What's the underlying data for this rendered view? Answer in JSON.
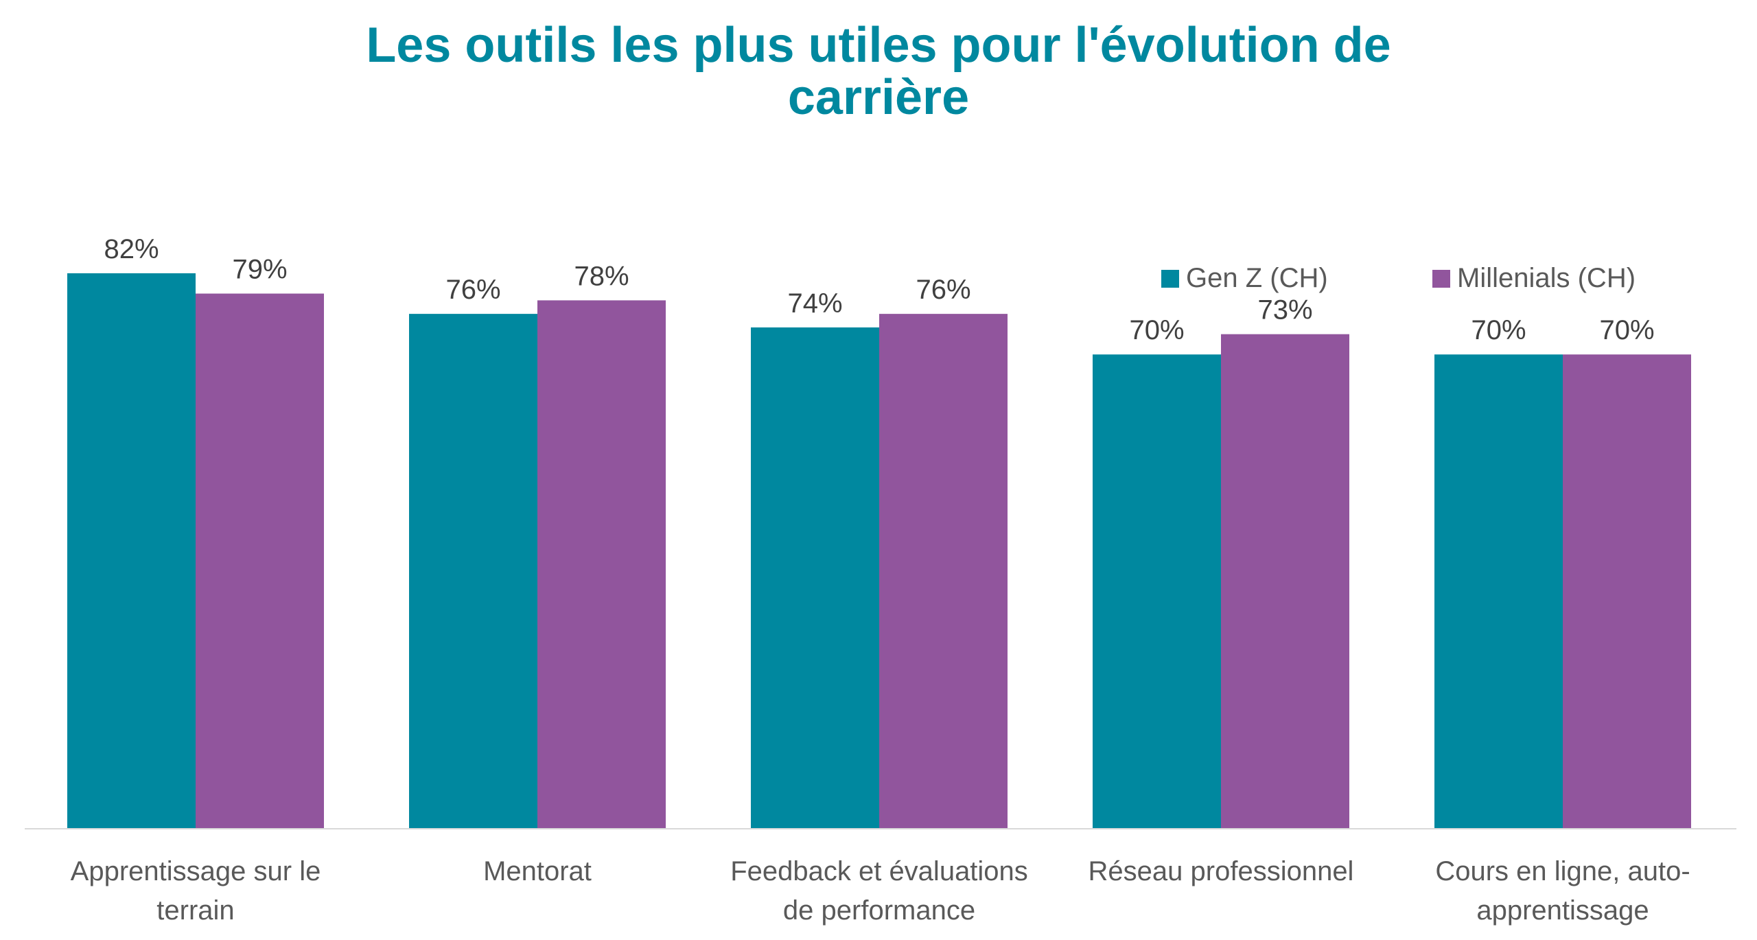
{
  "chart_data": {
    "type": "bar",
    "title_lines": [
      "Les outils les plus utiles pour l'évolution de",
      "carrière"
    ],
    "title_color": "#00889F",
    "categories": [
      [
        "Apprentissage sur le",
        "terrain"
      ],
      [
        "Mentorat"
      ],
      [
        "Feedback et évaluations",
        "de performance"
      ],
      [
        "Réseau professionnel"
      ],
      [
        "Cours en ligne, auto-",
        "apprentissage"
      ]
    ],
    "series": [
      {
        "name": "Gen Z (CH)",
        "color": "#00889F",
        "values": [
          82,
          76,
          74,
          70,
          70
        ]
      },
      {
        "name": "Millenials (CH)",
        "color": "#91559D",
        "values": [
          79,
          78,
          76,
          73,
          70
        ]
      }
    ],
    "value_suffix": "%",
    "ylim": [
      0,
      100
    ],
    "grid": false,
    "legend_position": "top-right",
    "axis_color": "#D9D9D9"
  }
}
